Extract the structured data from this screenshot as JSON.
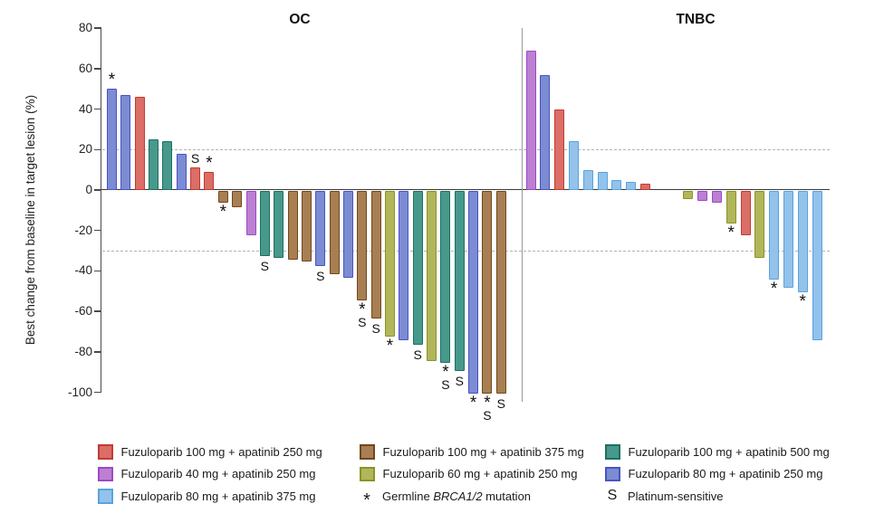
{
  "chart_data": {
    "type": "bar",
    "variant": "waterfall",
    "ylabel": "Best change from baseline in target lesion (%)",
    "ylim": [
      -100,
      80
    ],
    "yticks": [
      80,
      60,
      40,
      20,
      0,
      -20,
      -40,
      -60,
      -80,
      -100
    ],
    "reference_lines": [
      20,
      -30
    ],
    "grid": "off",
    "legend_position": "bottom",
    "series_colors": {
      "red": {
        "fill": "#DB6E66",
        "stroke": "#C13B32"
      },
      "brown": {
        "fill": "#A87E53",
        "stroke": "#70481C"
      },
      "teal": {
        "fill": "#47998B",
        "stroke": "#1E7061"
      },
      "purple": {
        "fill": "#BC80D2",
        "stroke": "#9C49C4"
      },
      "olive": {
        "fill": "#B2B65B",
        "stroke": "#8B9226"
      },
      "blue": {
        "fill": "#7B8CD3",
        "stroke": "#4A52C5"
      },
      "sky": {
        "fill": "#93C3EB",
        "stroke": "#5AA2DE"
      }
    },
    "panels": [
      {
        "label": "OC",
        "bars": [
          {
            "value": 50,
            "color": "blue",
            "markers": [
              "*"
            ]
          },
          {
            "value": 47,
            "color": "blue"
          },
          {
            "value": 46,
            "color": "red"
          },
          {
            "value": 25,
            "color": "teal"
          },
          {
            "value": 24,
            "color": "teal"
          },
          {
            "value": 18,
            "color": "blue"
          },
          {
            "value": 11,
            "color": "red",
            "markers": [
              "S"
            ]
          },
          {
            "value": 9,
            "color": "red",
            "markers": [
              "*"
            ]
          },
          {
            "value": -6,
            "color": "brown",
            "markers": [
              "*"
            ]
          },
          {
            "value": -8,
            "color": "brown"
          },
          {
            "value": -22,
            "color": "purple"
          },
          {
            "value": -32,
            "color": "teal",
            "markers": [
              "S"
            ]
          },
          {
            "value": -33,
            "color": "teal"
          },
          {
            "value": -34,
            "color": "brown"
          },
          {
            "value": -35,
            "color": "brown"
          },
          {
            "value": -37,
            "color": "blue",
            "markers": [
              "S"
            ]
          },
          {
            "value": -41,
            "color": "brown"
          },
          {
            "value": -43,
            "color": "blue"
          },
          {
            "value": -54,
            "color": "brown",
            "markers": [
              "*",
              "S"
            ]
          },
          {
            "value": -63,
            "color": "brown",
            "markers": [
              "S"
            ]
          },
          {
            "value": -72,
            "color": "olive",
            "markers": [
              "*"
            ]
          },
          {
            "value": -74,
            "color": "blue"
          },
          {
            "value": -76,
            "color": "teal",
            "markers": [
              "S"
            ]
          },
          {
            "value": -84,
            "color": "olive"
          },
          {
            "value": -85,
            "color": "teal",
            "markers": [
              "*",
              "S"
            ]
          },
          {
            "value": -89,
            "color": "teal",
            "markers": [
              "S"
            ]
          },
          {
            "value": -100,
            "color": "blue",
            "markers": [
              "*"
            ]
          },
          {
            "value": -100,
            "color": "brown",
            "markers": [
              "*",
              "S"
            ]
          },
          {
            "value": -100,
            "color": "brown",
            "markers": [
              "S"
            ]
          }
        ]
      },
      {
        "label": "TNBC",
        "bars": [
          {
            "value": 69,
            "color": "purple",
            "slot": 0
          },
          {
            "value": 57,
            "color": "blue",
            "slot": 1
          },
          {
            "value": 40,
            "color": "red",
            "slot": 2
          },
          {
            "value": 24,
            "color": "sky",
            "slot": 3
          },
          {
            "value": 10,
            "color": "sky",
            "slot": 4
          },
          {
            "value": 9,
            "color": "sky",
            "slot": 5
          },
          {
            "value": 5,
            "color": "sky",
            "slot": 6
          },
          {
            "value": 4,
            "color": "sky",
            "slot": 7
          },
          {
            "value": 3,
            "color": "red",
            "slot": 8
          },
          {
            "value": -4,
            "color": "olive",
            "slot": 11
          },
          {
            "value": -5,
            "color": "purple",
            "slot": 12
          },
          {
            "value": -6,
            "color": "purple",
            "slot": 13
          },
          {
            "value": -16,
            "color": "olive",
            "slot": 14,
            "markers": [
              "*"
            ]
          },
          {
            "value": -22,
            "color": "red",
            "slot": 15
          },
          {
            "value": -33,
            "color": "olive",
            "slot": 16
          },
          {
            "value": -44,
            "color": "sky",
            "slot": 17,
            "markers": [
              "*"
            ]
          },
          {
            "value": -48,
            "color": "sky",
            "slot": 18
          },
          {
            "value": -50,
            "color": "sky",
            "slot": 19,
            "markers": [
              "*"
            ]
          },
          {
            "value": -74,
            "color": "sky",
            "slot": 20
          }
        ]
      }
    ],
    "legend": {
      "columns": [
        {
          "items": [
            {
              "type": "swatch",
              "color": "red",
              "label": "Fuzuloparib 100 mg + apatinib 250 mg"
            },
            {
              "type": "swatch",
              "color": "purple",
              "label": "Fuzuloparib 40 mg + apatinib 250 mg"
            },
            {
              "type": "swatch",
              "color": "sky",
              "label": "Fuzuloparib 80 mg + apatinib 375 mg"
            }
          ]
        },
        {
          "items": [
            {
              "type": "swatch",
              "color": "brown",
              "label": "Fuzuloparib 100 mg + apatinib 375 mg"
            },
            {
              "type": "swatch",
              "color": "olive",
              "label": "Fuzuloparib 60 mg + apatinib 250 mg"
            },
            {
              "type": "marker",
              "symbol": "*",
              "label_parts": [
                {
                  "t": "Germline "
                },
                {
                  "t": "BRCA1/2",
                  "italic": true
                },
                {
                  "t": " mutation"
                }
              ]
            }
          ]
        },
        {
          "items": [
            {
              "type": "swatch",
              "color": "teal",
              "label": "Fuzuloparib 100 mg + apatinib 500 mg"
            },
            {
              "type": "swatch",
              "color": "blue",
              "label": "Fuzuloparib 80 mg + apatinib 250 mg"
            },
            {
              "type": "marker",
              "symbol": "S",
              "label_parts": [
                {
                  "t": "Platinum-sensitive"
                }
              ]
            }
          ]
        }
      ]
    }
  }
}
